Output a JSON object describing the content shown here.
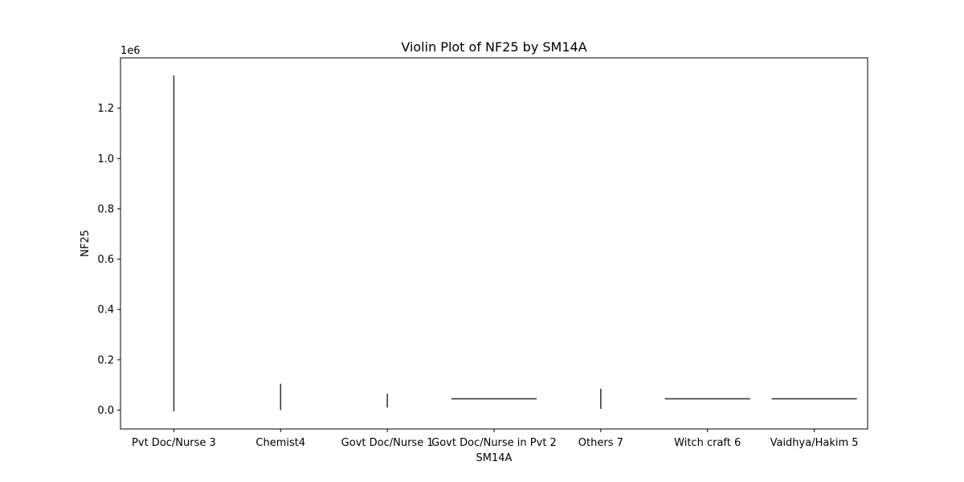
{
  "chart_data": {
    "type": "violin",
    "title": "Violin Plot of NF25 by SM14A",
    "xlabel": "SM14A",
    "ylabel": "NF25",
    "y_offset_label": "1e6",
    "ylim": [
      -75000,
      1400000
    ],
    "yticks": [
      0,
      200000,
      400000,
      600000,
      800000,
      1000000,
      1200000
    ],
    "ytick_labels": [
      "0.0",
      "0.2",
      "0.4",
      "0.6",
      "0.8",
      "1.0",
      "1.2"
    ],
    "categories": [
      "Pvt Doc/Nurse 3",
      "Chemist4",
      "Govt Doc/Nurse 1",
      "Govt Doc/Nurse in Pvt 2",
      "Others 7",
      "Witch craft 6",
      "Vaidhya/Hakim 5"
    ],
    "violins": [
      {
        "shape": "vertical",
        "min": -5000,
        "max": 1330000
      },
      {
        "shape": "vertical",
        "min": 0,
        "max": 105000
      },
      {
        "shape": "vertical",
        "min": 10000,
        "max": 65000
      },
      {
        "shape": "horizontal",
        "value": 45000
      },
      {
        "shape": "vertical",
        "min": 5000,
        "max": 85000
      },
      {
        "shape": "horizontal",
        "value": 45000
      },
      {
        "shape": "horizontal",
        "value": 45000
      }
    ],
    "grid": false,
    "colors": {
      "line": "#3b3b3b",
      "axis": "#000000"
    }
  }
}
